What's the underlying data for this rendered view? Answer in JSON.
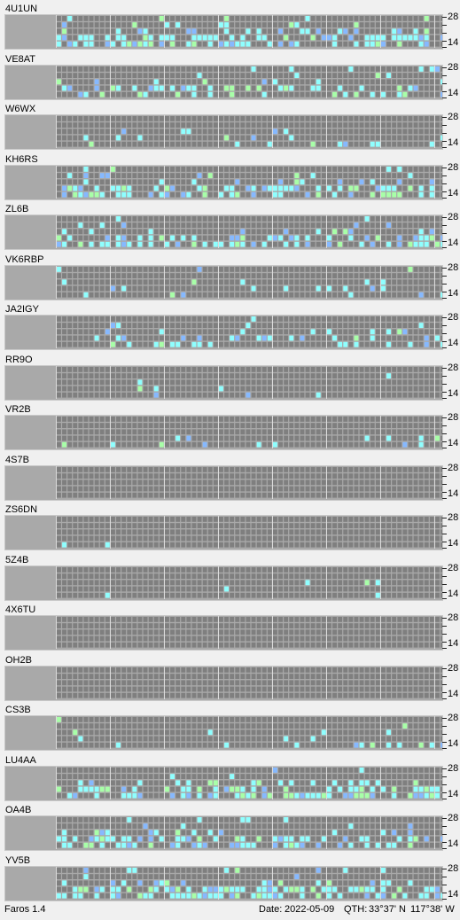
{
  "app": {
    "name": "Faros 1.4"
  },
  "status": {
    "date_label": "Date:",
    "date": "2022-05-09",
    "qth_label": "QTH:",
    "lat": "33°37' N",
    "lon": "117°38' W"
  },
  "axis": {
    "top_label": "28",
    "bottom_label": "14"
  },
  "colors": {
    "panel": "#a9a9a9",
    "cell_empty": "#7f7f7f",
    "cell_blue": "#86b9ff",
    "cell_cyan": "#8fffff",
    "cell_green": "#a8ffa8",
    "cell_light": "#c8c8c8",
    "gridline": "#dcdcdc"
  },
  "stations": [
    {
      "name": "4U1UN"
    },
    {
      "name": "VE8AT"
    },
    {
      "name": "W6WX"
    },
    {
      "name": "KH6RS"
    },
    {
      "name": "ZL6B"
    },
    {
      "name": "VK6RBP"
    },
    {
      "name": "JA2IGY"
    },
    {
      "name": "RR9O"
    },
    {
      "name": "VR2B"
    },
    {
      "name": "4S7B"
    },
    {
      "name": "ZS6DN"
    },
    {
      "name": "5Z4B"
    },
    {
      "name": "4X6TU"
    },
    {
      "name": "OH2B"
    },
    {
      "name": "CS3B"
    },
    {
      "name": "LU4AA"
    },
    {
      "name": "OA4B"
    },
    {
      "name": "YV5B"
    }
  ]
}
